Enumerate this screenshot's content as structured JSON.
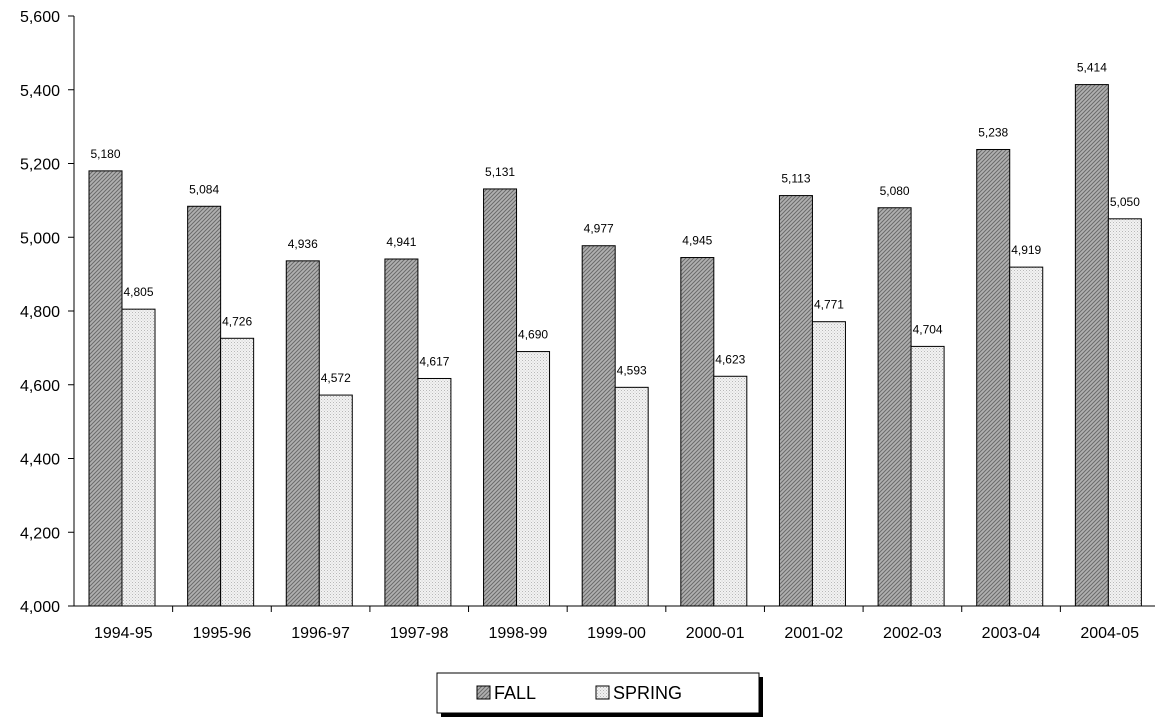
{
  "chart_data": {
    "type": "bar",
    "title": "",
    "xlabel": "",
    "ylabel": "",
    "ylim": [
      4000,
      5600
    ],
    "yticks": [
      4000,
      4200,
      4400,
      4600,
      4800,
      5000,
      5200,
      5400,
      5600
    ],
    "ytick_labels": [
      "4,000",
      "4,200",
      "4,400",
      "4,600",
      "4,800",
      "5,000",
      "5,200",
      "5,400",
      "5,600"
    ],
    "grid": false,
    "legend_position": "bottom-center",
    "categories": [
      "1994-95",
      "1995-96",
      "1996-97",
      "1997-98",
      "1998-99",
      "1999-00",
      "2000-01",
      "2001-02",
      "2002-03",
      "2003-04",
      "2004-05"
    ],
    "series": [
      {
        "name": "FALL",
        "color": "#9a9a9a",
        "pattern": "diagonal-hatch-dark",
        "values": [
          5180,
          5084,
          4936,
          4941,
          5131,
          4977,
          4945,
          5113,
          5080,
          5238,
          5414
        ],
        "labels": [
          "5,180",
          "5,084",
          "4,936",
          "4,941",
          "5,131",
          "4,977",
          "4,945",
          "5,113",
          "5,080",
          "5,238",
          "5,414"
        ]
      },
      {
        "name": "SPRING",
        "color": "#e4e4e4",
        "pattern": "dotted-light",
        "values": [
          4805,
          4726,
          4572,
          4617,
          4690,
          4593,
          4623,
          4771,
          4704,
          4919,
          5050
        ],
        "labels": [
          "4,805",
          "4,726",
          "4,572",
          "4,617",
          "4,690",
          "4,593",
          "4,623",
          "4,771",
          "4,704",
          "4,919",
          "5,050"
        ]
      }
    ]
  }
}
